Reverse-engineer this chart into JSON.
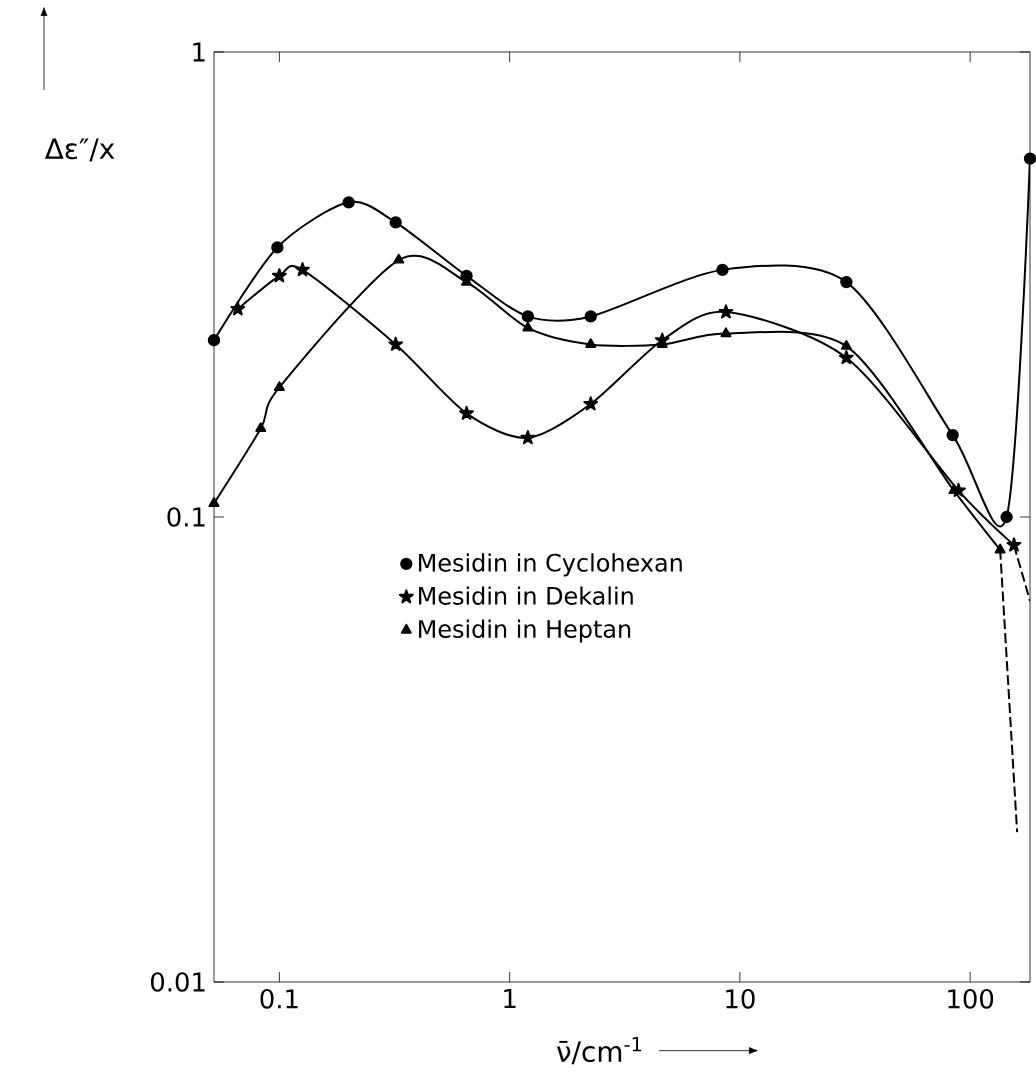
{
  "chart_data": {
    "type": "line",
    "xlabel": "ν̄/cm$^{-1}$",
    "ylabel": "Δε″/x",
    "log": "xy",
    "xlim": [
      0.052,
      182
    ],
    "ylim": [
      0.01,
      1
    ],
    "xticks": [
      0.1,
      1,
      10,
      100
    ],
    "yticks": [
      0.01,
      0.1,
      1
    ],
    "legend": "center",
    "grid": false,
    "series": [
      {
        "name": "Mesidin in Cyclohexan",
        "color": "#000000",
        "marker": "circle",
        "line_style": "solid",
        "x": [
          0.052,
          0.098,
          0.2,
          0.32,
          0.65,
          1.2,
          2.25,
          8.4,
          29,
          84,
          144,
          182
        ],
        "values": [
          0.24,
          0.38,
          0.475,
          0.43,
          0.33,
          0.27,
          0.27,
          0.34,
          0.32,
          0.15,
          0.1,
          0.59
        ]
      },
      {
        "name": "Mesidin in Dekalin",
        "color": "#000000",
        "marker": "star",
        "line_style": "solid",
        "x": [
          0.066,
          0.1,
          0.126,
          0.32,
          0.65,
          1.2,
          2.25,
          4.6,
          8.7,
          29,
          89,
          155
        ],
        "values": [
          0.28,
          0.33,
          0.34,
          0.235,
          0.167,
          0.148,
          0.175,
          0.24,
          0.276,
          0.22,
          0.114,
          0.087
        ]
      },
      {
        "name": "Mesidin in Heptan",
        "color": "#000000",
        "marker": "triangle",
        "line_style": "solid",
        "x": [
          0.052,
          0.083,
          0.1,
          0.33,
          0.65,
          1.2,
          2.25,
          4.6,
          8.7,
          29,
          85,
          135
        ],
        "values": [
          0.107,
          0.155,
          0.19,
          0.357,
          0.32,
          0.255,
          0.235,
          0.235,
          0.248,
          0.233,
          0.114,
          0.085
        ]
      },
      {
        "color": "#000000",
        "marker": "none",
        "line_style": "dashed",
        "x": [
          155,
          182
        ],
        "values": [
          0.087,
          0.066
        ]
      },
      {
        "color": "#000000",
        "marker": "none",
        "line_style": "dashed",
        "x": [
          135,
          160
        ],
        "values": [
          0.085,
          0.021
        ]
      }
    ]
  }
}
